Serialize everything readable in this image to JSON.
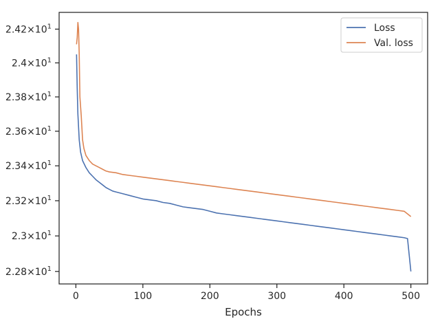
{
  "chart_data": {
    "type": "line",
    "title": "",
    "xlabel": "Epochs",
    "ylabel": "",
    "xlim": [
      -25,
      525
    ],
    "ylim": [
      22.73,
      24.3
    ],
    "yscale": "log",
    "grid": false,
    "legend_position": "top-right",
    "x_ticks": [
      0,
      100,
      200,
      300,
      400,
      500
    ],
    "x_tick_labels": [
      "0",
      "100",
      "200",
      "300",
      "400",
      "500"
    ],
    "y_ticks": [
      22.8,
      23.0,
      23.2,
      23.4,
      23.6,
      23.8,
      24.0,
      24.2
    ],
    "y_tick_labels": [
      {
        "mantissa": "2.28",
        "exp": "1"
      },
      {
        "mantissa": "2.3",
        "exp": "1"
      },
      {
        "mantissa": "2.32",
        "exp": "1"
      },
      {
        "mantissa": "2.34",
        "exp": "1"
      },
      {
        "mantissa": "2.36",
        "exp": "1"
      },
      {
        "mantissa": "2.38",
        "exp": "1"
      },
      {
        "mantissa": "2.4",
        "exp": "1"
      },
      {
        "mantissa": "2.42",
        "exp": "1"
      }
    ],
    "y_tick_multiplier": "×10",
    "series": [
      {
        "name": "Loss",
        "color": "#4c72b0",
        "points": [
          [
            1,
            24.05
          ],
          [
            2,
            23.85
          ],
          [
            3,
            23.7
          ],
          [
            5,
            23.55
          ],
          [
            7,
            23.48
          ],
          [
            10,
            23.43
          ],
          [
            15,
            23.39
          ],
          [
            20,
            23.36
          ],
          [
            25,
            23.34
          ],
          [
            30,
            23.32
          ],
          [
            35,
            23.305
          ],
          [
            40,
            23.29
          ],
          [
            45,
            23.275
          ],
          [
            50,
            23.265
          ],
          [
            55,
            23.255
          ],
          [
            60,
            23.25
          ],
          [
            70,
            23.24
          ],
          [
            80,
            23.23
          ],
          [
            90,
            23.22
          ],
          [
            100,
            23.21
          ],
          [
            110,
            23.205
          ],
          [
            120,
            23.2
          ],
          [
            130,
            23.19
          ],
          [
            140,
            23.185
          ],
          [
            150,
            23.175
          ],
          [
            160,
            23.165
          ],
          [
            170,
            23.16
          ],
          [
            180,
            23.155
          ],
          [
            190,
            23.15
          ],
          [
            200,
            23.14
          ],
          [
            210,
            23.13
          ],
          [
            220,
            23.125
          ],
          [
            230,
            23.12
          ],
          [
            240,
            23.115
          ],
          [
            250,
            23.11
          ],
          [
            260,
            23.105
          ],
          [
            270,
            23.1
          ],
          [
            280,
            23.095
          ],
          [
            290,
            23.09
          ],
          [
            300,
            23.085
          ],
          [
            310,
            23.08
          ],
          [
            320,
            23.075
          ],
          [
            330,
            23.07
          ],
          [
            340,
            23.065
          ],
          [
            350,
            23.06
          ],
          [
            360,
            23.055
          ],
          [
            370,
            23.05
          ],
          [
            380,
            23.045
          ],
          [
            390,
            23.04
          ],
          [
            400,
            23.035
          ],
          [
            410,
            23.03
          ],
          [
            420,
            23.025
          ],
          [
            430,
            23.02
          ],
          [
            440,
            23.015
          ],
          [
            450,
            23.01
          ],
          [
            460,
            23.005
          ],
          [
            470,
            23.0
          ],
          [
            480,
            22.995
          ],
          [
            490,
            22.99
          ],
          [
            495,
            22.985
          ],
          [
            500,
            22.8
          ]
        ]
      },
      {
        "name": "Val. loss",
        "color": "#dd8452",
        "points": [
          [
            1,
            24.11
          ],
          [
            2,
            24.15
          ],
          [
            3,
            24.24
          ],
          [
            4,
            24.2
          ],
          [
            5,
            24.05
          ],
          [
            6,
            23.8
          ],
          [
            8,
            23.69
          ],
          [
            10,
            23.55
          ],
          [
            12,
            23.5
          ],
          [
            15,
            23.46
          ],
          [
            20,
            23.43
          ],
          [
            25,
            23.41
          ],
          [
            30,
            23.4
          ],
          [
            35,
            23.39
          ],
          [
            40,
            23.38
          ],
          [
            45,
            23.37
          ],
          [
            50,
            23.365
          ],
          [
            60,
            23.36
          ],
          [
            70,
            23.35
          ],
          [
            80,
            23.345
          ],
          [
            90,
            23.34
          ],
          [
            100,
            23.335
          ],
          [
            110,
            23.33
          ],
          [
            120,
            23.325
          ],
          [
            130,
            23.32
          ],
          [
            140,
            23.315
          ],
          [
            150,
            23.31
          ],
          [
            160,
            23.305
          ],
          [
            170,
            23.3
          ],
          [
            180,
            23.295
          ],
          [
            190,
            23.29
          ],
          [
            200,
            23.285
          ],
          [
            210,
            23.28
          ],
          [
            220,
            23.275
          ],
          [
            230,
            23.27
          ],
          [
            240,
            23.265
          ],
          [
            250,
            23.26
          ],
          [
            260,
            23.255
          ],
          [
            270,
            23.25
          ],
          [
            280,
            23.245
          ],
          [
            290,
            23.24
          ],
          [
            300,
            23.235
          ],
          [
            310,
            23.23
          ],
          [
            320,
            23.225
          ],
          [
            330,
            23.22
          ],
          [
            340,
            23.215
          ],
          [
            350,
            23.21
          ],
          [
            360,
            23.205
          ],
          [
            370,
            23.2
          ],
          [
            380,
            23.195
          ],
          [
            390,
            23.19
          ],
          [
            400,
            23.185
          ],
          [
            410,
            23.18
          ],
          [
            420,
            23.175
          ],
          [
            430,
            23.17
          ],
          [
            440,
            23.165
          ],
          [
            450,
            23.16
          ],
          [
            460,
            23.155
          ],
          [
            470,
            23.15
          ],
          [
            480,
            23.145
          ],
          [
            490,
            23.14
          ],
          [
            500,
            23.11
          ]
        ]
      }
    ]
  }
}
